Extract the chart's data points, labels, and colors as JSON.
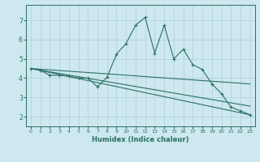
{
  "title": "",
  "xlabel": "Humidex (Indice chaleur)",
  "bg_color": "#cde8ee",
  "grid_color": "#afd0d8",
  "line_color": "#2a7068",
  "xlim": [
    -0.5,
    23.5
  ],
  "ylim": [
    1.5,
    7.8
  ],
  "yticks": [
    2,
    3,
    4,
    5,
    6,
    7
  ],
  "xticks": [
    0,
    1,
    2,
    3,
    4,
    5,
    6,
    7,
    8,
    9,
    10,
    11,
    12,
    13,
    14,
    15,
    16,
    17,
    18,
    19,
    20,
    21,
    22,
    23
  ],
  "series_main": {
    "x": [
      0,
      1,
      2,
      3,
      4,
      5,
      6,
      7,
      8,
      9,
      10,
      11,
      12,
      13,
      14,
      15,
      16,
      17,
      18,
      19,
      20,
      21,
      22,
      23
    ],
    "y": [
      4.5,
      4.4,
      4.15,
      4.15,
      4.1,
      4.0,
      4.0,
      3.55,
      4.05,
      5.25,
      5.8,
      6.75,
      7.15,
      5.3,
      6.75,
      5.0,
      5.5,
      4.7,
      4.45,
      3.7,
      3.2,
      2.5,
      2.3,
      2.1
    ]
  },
  "series_lines": [
    {
      "x": [
        0,
        23
      ],
      "y": [
        4.5,
        3.7
      ]
    },
    {
      "x": [
        0,
        23
      ],
      "y": [
        4.5,
        2.55
      ]
    },
    {
      "x": [
        0,
        23
      ],
      "y": [
        4.5,
        2.1
      ]
    }
  ]
}
